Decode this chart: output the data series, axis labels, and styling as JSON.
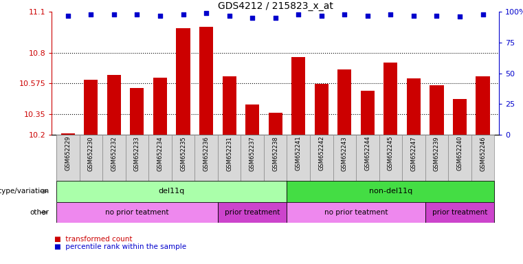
{
  "title": "GDS4212 / 215823_x_at",
  "samples": [
    "GSM652229",
    "GSM652230",
    "GSM652232",
    "GSM652233",
    "GSM652234",
    "GSM652235",
    "GSM652236",
    "GSM652231",
    "GSM652237",
    "GSM652238",
    "GSM652241",
    "GSM652242",
    "GSM652243",
    "GSM652244",
    "GSM652245",
    "GSM652247",
    "GSM652239",
    "GSM652240",
    "GSM652246"
  ],
  "bar_values": [
    10.21,
    10.6,
    10.64,
    10.54,
    10.62,
    10.98,
    10.99,
    10.63,
    10.42,
    10.36,
    10.77,
    10.57,
    10.68,
    10.52,
    10.73,
    10.61,
    10.56,
    10.46,
    10.63
  ],
  "percentile_values": [
    97,
    98,
    98,
    98,
    97,
    98,
    99,
    97,
    95,
    95,
    98,
    97,
    98,
    97,
    98,
    97,
    97,
    96,
    98
  ],
  "bar_color": "#cc0000",
  "dot_color": "#0000cc",
  "ylim_left": [
    10.2,
    11.1
  ],
  "yticks_left": [
    10.2,
    10.35,
    10.575,
    10.8,
    11.1
  ],
  "ytick_labels_left": [
    "10.2",
    "10.35",
    "10.575",
    "10.8",
    "11.1"
  ],
  "ylim_right": [
    0,
    100
  ],
  "yticks_right": [
    0,
    25,
    50,
    75,
    100
  ],
  "ytick_labels_right": [
    "0",
    "25",
    "50",
    "75",
    "100%"
  ],
  "background_color": "#ffffff",
  "genotype_groups": [
    {
      "label": "del11q",
      "start": 0,
      "end": 10,
      "color": "#aaffaa"
    },
    {
      "label": "non-del11q",
      "start": 10,
      "end": 19,
      "color": "#44dd44"
    }
  ],
  "other_groups": [
    {
      "label": "no prior teatment",
      "start": 0,
      "end": 7,
      "color": "#ee88ee"
    },
    {
      "label": "prior treatment",
      "start": 7,
      "end": 10,
      "color": "#cc44cc"
    },
    {
      "label": "no prior teatment",
      "start": 10,
      "end": 16,
      "color": "#ee88ee"
    },
    {
      "label": "prior treatment",
      "start": 16,
      "end": 19,
      "color": "#cc44cc"
    }
  ],
  "legend_red_label": "transformed count",
  "legend_blue_label": "percentile rank within the sample"
}
